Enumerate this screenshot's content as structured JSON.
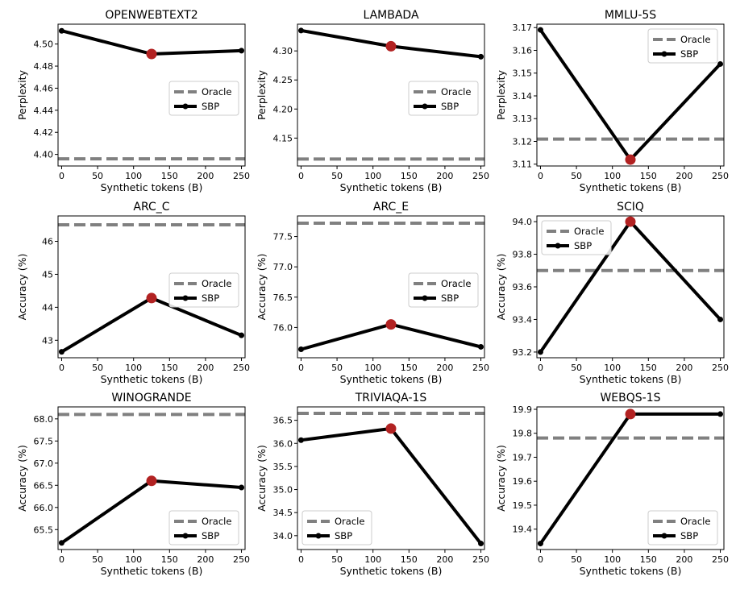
{
  "chart_data": [
    {
      "type": "line",
      "title": "OPENWEBTEXT2",
      "xlabel": "Synthetic tokens (B)",
      "ylabel": "Perplexity",
      "xlim": [
        -5,
        255
      ],
      "ylim": [
        4.3895,
        4.518
      ],
      "xticks": [
        0,
        50,
        100,
        150,
        200,
        250
      ],
      "yticks": [
        4.4,
        4.42,
        4.44,
        4.46,
        4.48,
        4.5
      ],
      "ytick_labels": [
        "4.40",
        "4.42",
        "4.44",
        "4.46",
        "4.48",
        "4.50"
      ],
      "oracle": 4.396,
      "series": [
        {
          "name": "SBP",
          "x": [
            0,
            125,
            250
          ],
          "y": [
            4.512,
            4.491,
            4.494
          ]
        }
      ],
      "highlight": {
        "x": 125,
        "y": 4.491
      },
      "legend": {
        "position": "center-right",
        "entries": [
          "Oracle",
          "SBP"
        ]
      }
    },
    {
      "type": "line",
      "title": "LAMBADA",
      "xlabel": "Synthetic tokens (B)",
      "ylabel": "Perplexity",
      "xlim": [
        -5,
        255
      ],
      "ylim": [
        4.102,
        4.346
      ],
      "xticks": [
        0,
        50,
        100,
        150,
        200,
        250
      ],
      "yticks": [
        4.15,
        4.2,
        4.25,
        4.3
      ],
      "ytick_labels": [
        "4.15",
        "4.20",
        "4.25",
        "4.30"
      ],
      "oracle": 4.114,
      "series": [
        {
          "name": "SBP",
          "x": [
            0,
            125,
            250
          ],
          "y": [
            4.335,
            4.308,
            4.29
          ]
        }
      ],
      "highlight": {
        "x": 125,
        "y": 4.308
      },
      "legend": {
        "position": "center-right",
        "entries": [
          "Oracle",
          "SBP"
        ]
      }
    },
    {
      "type": "line",
      "title": "MMLU-5S",
      "xlabel": "Synthetic tokens (B)",
      "ylabel": "Perplexity",
      "xlim": [
        -5,
        255
      ],
      "ylim": [
        3.1092,
        3.1715
      ],
      "xticks": [
        0,
        50,
        100,
        150,
        200,
        250
      ],
      "yticks": [
        3.11,
        3.12,
        3.13,
        3.14,
        3.15,
        3.16,
        3.17
      ],
      "ytick_labels": [
        "3.11",
        "3.12",
        "3.13",
        "3.14",
        "3.15",
        "3.16",
        "3.17"
      ],
      "oracle": 3.121,
      "series": [
        {
          "name": "SBP",
          "x": [
            0,
            125,
            250
          ],
          "y": [
            3.169,
            3.112,
            3.154
          ]
        }
      ],
      "highlight": {
        "x": 125,
        "y": 3.112
      },
      "legend": {
        "position": "upper-right",
        "entries": [
          "Oracle",
          "SBP"
        ]
      }
    },
    {
      "type": "line",
      "title": "ARC_C",
      "xlabel": "Synthetic tokens (B)",
      "ylabel": "Accuracy (%)",
      "xlim": [
        -5,
        255
      ],
      "ylim": [
        42.47,
        46.77
      ],
      "xticks": [
        0,
        50,
        100,
        150,
        200,
        250
      ],
      "yticks": [
        43,
        44,
        45,
        46
      ],
      "ytick_labels": [
        "43",
        "44",
        "45",
        "46"
      ],
      "oracle": 46.5,
      "series": [
        {
          "name": "SBP",
          "x": [
            0,
            125,
            250
          ],
          "y": [
            42.65,
            44.28,
            43.15
          ]
        }
      ],
      "highlight": {
        "x": 125,
        "y": 44.28
      },
      "legend": {
        "position": "center-right",
        "entries": [
          "Oracle",
          "SBP"
        ]
      }
    },
    {
      "type": "line",
      "title": "ARC_E",
      "xlabel": "Synthetic tokens (B)",
      "ylabel": "Accuracy (%)",
      "xlim": [
        -5,
        255
      ],
      "ylim": [
        75.5,
        77.84
      ],
      "xticks": [
        0,
        50,
        100,
        150,
        200,
        250
      ],
      "yticks": [
        76.0,
        76.5,
        77.0,
        77.5
      ],
      "ytick_labels": [
        "76.0",
        "76.5",
        "77.0",
        "77.5"
      ],
      "oracle": 77.72,
      "series": [
        {
          "name": "SBP",
          "x": [
            0,
            125,
            250
          ],
          "y": [
            75.64,
            76.05,
            75.68
          ]
        }
      ],
      "highlight": {
        "x": 125,
        "y": 76.05
      },
      "legend": {
        "position": "center-right",
        "entries": [
          "Oracle",
          "SBP"
        ]
      }
    },
    {
      "type": "line",
      "title": "SCIQ",
      "xlabel": "Synthetic tokens (B)",
      "ylabel": "Accuracy (%)",
      "xlim": [
        -5,
        255
      ],
      "ylim": [
        93.165,
        94.035
      ],
      "xticks": [
        0,
        50,
        100,
        150,
        200,
        250
      ],
      "yticks": [
        93.2,
        93.4,
        93.6,
        93.8,
        94.0
      ],
      "ytick_labels": [
        "93.2",
        "93.4",
        "93.6",
        "93.8",
        "94.0"
      ],
      "oracle": 93.7,
      "series": [
        {
          "name": "SBP",
          "x": [
            0,
            125,
            250
          ],
          "y": [
            93.2,
            94.0,
            93.4
          ]
        }
      ],
      "highlight": {
        "x": 125,
        "y": 94.0
      },
      "legend": {
        "position": "upper-left",
        "entries": [
          "Oracle",
          "SBP"
        ]
      }
    },
    {
      "type": "line",
      "title": "WINOGRANDE",
      "xlabel": "Synthetic tokens (B)",
      "ylabel": "Accuracy (%)",
      "xlim": [
        -5,
        255
      ],
      "ylim": [
        65.05,
        68.27
      ],
      "xticks": [
        0,
        50,
        100,
        150,
        200,
        250
      ],
      "yticks": [
        65.5,
        66.0,
        66.5,
        67.0,
        67.5,
        68.0
      ],
      "ytick_labels": [
        "65.5",
        "66.0",
        "66.5",
        "67.0",
        "67.5",
        "68.0"
      ],
      "oracle": 68.1,
      "series": [
        {
          "name": "SBP",
          "x": [
            0,
            125,
            250
          ],
          "y": [
            65.2,
            66.6,
            66.45
          ]
        }
      ],
      "highlight": {
        "x": 125,
        "y": 66.6
      },
      "legend": {
        "position": "lower-right",
        "entries": [
          "Oracle",
          "SBP"
        ]
      }
    },
    {
      "type": "line",
      "title": "TRIVIAQA-1S",
      "xlabel": "Synthetic tokens (B)",
      "ylabel": "Accuracy (%)",
      "xlim": [
        -5,
        255
      ],
      "ylim": [
        33.7,
        36.79
      ],
      "xticks": [
        0,
        50,
        100,
        150,
        200,
        250
      ],
      "yticks": [
        34.0,
        34.5,
        35.0,
        35.5,
        36.0,
        36.5
      ],
      "ytick_labels": [
        "34.0",
        "34.5",
        "35.0",
        "35.5",
        "36.0",
        "36.5"
      ],
      "oracle": 36.65,
      "series": [
        {
          "name": "SBP",
          "x": [
            0,
            125,
            250
          ],
          "y": [
            36.07,
            36.32,
            33.83
          ]
        }
      ],
      "highlight": {
        "x": 125,
        "y": 36.32
      },
      "legend": {
        "position": "lower-left",
        "entries": [
          "Oracle",
          "SBP"
        ]
      }
    },
    {
      "type": "line",
      "title": "WEBQS-1S",
      "xlabel": "Synthetic tokens (B)",
      "ylabel": "Accuracy (%)",
      "xlim": [
        -5,
        255
      ],
      "ylim": [
        19.315,
        19.91
      ],
      "xticks": [
        0,
        50,
        100,
        150,
        200,
        250
      ],
      "yticks": [
        19.4,
        19.5,
        19.6,
        19.7,
        19.8,
        19.9
      ],
      "ytick_labels": [
        "19.4",
        "19.5",
        "19.6",
        "19.7",
        "19.8",
        "19.9"
      ],
      "oracle": 19.78,
      "series": [
        {
          "name": "SBP",
          "x": [
            0,
            125,
            250
          ],
          "y": [
            19.34,
            19.88,
            19.88
          ]
        }
      ],
      "highlight": {
        "x": 125,
        "y": 19.88
      },
      "legend": {
        "position": "lower-right",
        "entries": [
          "Oracle",
          "SBP"
        ]
      }
    }
  ],
  "colors": {
    "sbp_line": "#000000",
    "oracle_line": "#808080",
    "highlight_marker": "#b22222",
    "axis": "#000000"
  }
}
